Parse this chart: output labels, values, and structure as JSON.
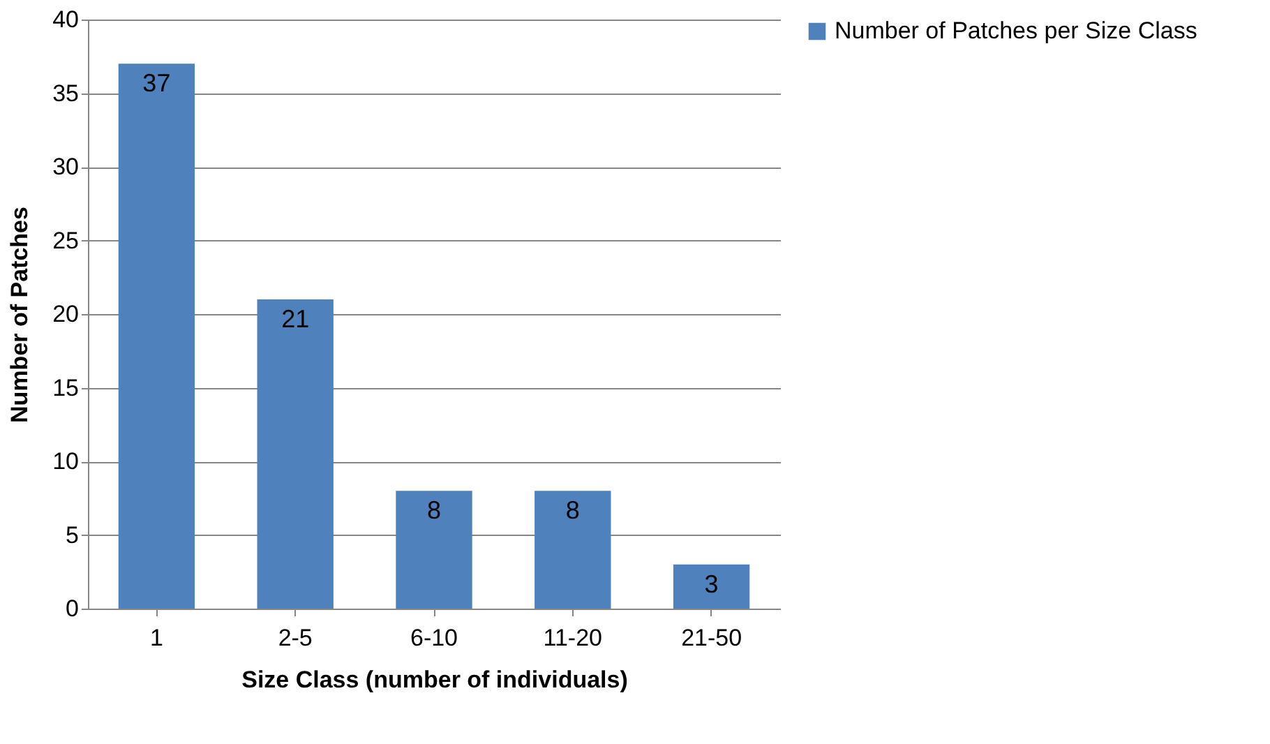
{
  "chart_data": {
    "type": "bar",
    "xlabel": "Size Class (number of individuals)",
    "ylabel": "Number of Patches",
    "categories": [
      "1",
      "2-5",
      "6-10",
      "11-20",
      "21-50"
    ],
    "series": [
      {
        "name": "Number of Patches per Size Class",
        "color": "#4f81bd",
        "values": [
          37,
          21,
          8,
          8,
          3
        ]
      }
    ],
    "ylim": [
      0,
      40
    ],
    "yticks": [
      0,
      5,
      10,
      15,
      20,
      25,
      30,
      35,
      40
    ],
    "grid": "y",
    "legend": "right",
    "data_labels": true
  }
}
